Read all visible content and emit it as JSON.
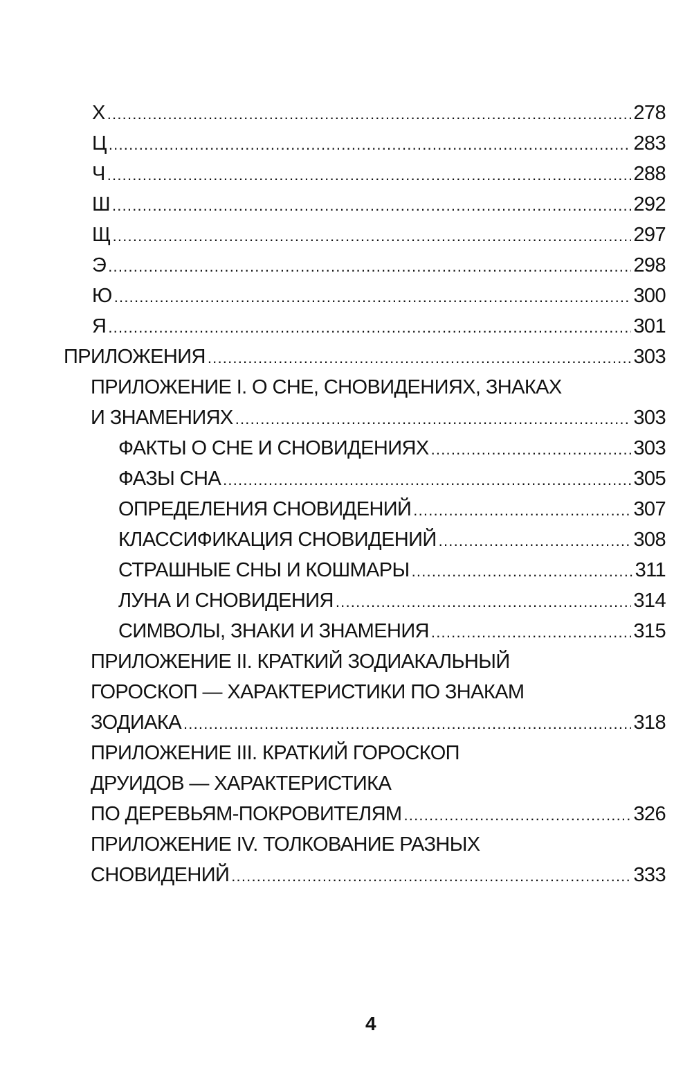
{
  "toc": [
    {
      "level": "letter",
      "lines": [
        "Х"
      ],
      "page": "278"
    },
    {
      "level": "letter",
      "lines": [
        "Ц"
      ],
      "page": "283"
    },
    {
      "level": "letter",
      "lines": [
        "Ч"
      ],
      "page": "288"
    },
    {
      "level": "letter",
      "lines": [
        "Ш"
      ],
      "page": "292"
    },
    {
      "level": "letter",
      "lines": [
        "Щ"
      ],
      "page": "297"
    },
    {
      "level": "letter",
      "lines": [
        "Э"
      ],
      "page": "298"
    },
    {
      "level": "letter",
      "lines": [
        "Ю"
      ],
      "page": "300"
    },
    {
      "level": "letter",
      "lines": [
        "Я"
      ],
      "page": "301"
    },
    {
      "level": "0",
      "lines": [
        "ПРИЛОЖЕНИЯ"
      ],
      "page": "303"
    },
    {
      "level": "1",
      "lines": [
        "ПРИЛОЖЕНИЕ I. О СНЕ, СНОВИДЕНИЯХ, ЗНАКАХ",
        "И ЗНАМЕНИЯХ"
      ],
      "page": "303"
    },
    {
      "level": "2",
      "lines": [
        "ФАКТЫ О СНЕ И СНОВИДЕНИЯХ"
      ],
      "page": "303"
    },
    {
      "level": "2",
      "lines": [
        "ФАЗЫ СНА"
      ],
      "page": "305"
    },
    {
      "level": "2",
      "lines": [
        "ОПРЕДЕЛЕНИЯ СНОВИДЕНИЙ"
      ],
      "page": "307"
    },
    {
      "level": "2",
      "lines": [
        "КЛАССИФИКАЦИЯ СНОВИДЕНИЙ"
      ],
      "page": "308"
    },
    {
      "level": "2",
      "lines": [
        "СТРАШНЫЕ СНЫ И КОШМАРЫ"
      ],
      "page": "311"
    },
    {
      "level": "2",
      "lines": [
        "ЛУНА И СНОВИДЕНИЯ"
      ],
      "page": "314"
    },
    {
      "level": "2",
      "lines": [
        "СИМВОЛЫ, ЗНАКИ И ЗНАМЕНИЯ"
      ],
      "page": "315"
    },
    {
      "level": "1",
      "lines": [
        "ПРИЛОЖЕНИЕ II. КРАТКИЙ ЗОДИАКАЛЬНЫЙ",
        "ГОРОСКОП — ХАРАКТЕРИСТИКИ ПО ЗНАКАМ",
        "ЗОДИАКА"
      ],
      "page": "318"
    },
    {
      "level": "1",
      "lines": [
        "ПРИЛОЖЕНИЕ III. КРАТКИЙ ГОРОСКОП",
        "ДРУИДОВ — ХАРАКТЕРИСТИКА",
        "ПО ДЕРЕВЬЯМ-ПОКРОВИТЕЛЯМ"
      ],
      "page": "326"
    },
    {
      "level": "1",
      "lines": [
        "ПРИЛОЖЕНИЕ IV. ТОЛКОВАНИЕ РАЗНЫХ",
        "СНОВИДЕНИЙ"
      ],
      "page": "333"
    }
  ],
  "page_number": "4"
}
